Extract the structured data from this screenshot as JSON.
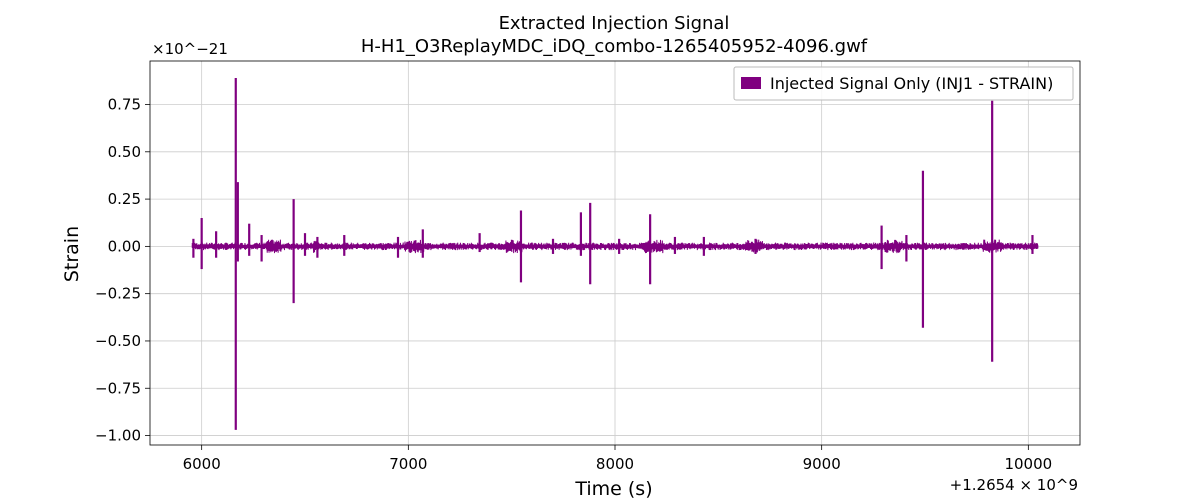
{
  "chart_data": {
    "type": "line",
    "title": "Extracted Injection Signal",
    "subtitle": "H-H1_O3ReplayMDC_iDQ_combo-1265405952-4096.gwf",
    "xlabel": "Time (s)",
    "ylabel": "Strain",
    "x_offset_label": "+1.2654 × 10^9",
    "y_exponent_label": "×10^−21",
    "xlim": [
      5750,
      10250
    ],
    "ylim": [
      -1.05,
      0.98
    ],
    "x_ticks": [
      6000,
      7000,
      8000,
      9000,
      10000
    ],
    "x_tick_labels": [
      "6000",
      "7000",
      "8000",
      "9000",
      "10000"
    ],
    "y_ticks": [
      0.75,
      0.5,
      0.25,
      0.0,
      -0.25,
      -0.5,
      -0.75,
      -1.0
    ],
    "y_tick_labels": [
      "0.75",
      "0.50",
      "0.25",
      "0.00",
      "−0.25",
      "−0.50",
      "−0.75",
      "−1.00"
    ],
    "grid": true,
    "legend_position": "top-right",
    "series": [
      {
        "name": "Injected Signal Only (INJ1 - STRAIN)",
        "color": "#800080",
        "x_range": [
          5952,
          10048
        ],
        "baseline_amplitude": 0.02,
        "spikes": [
          {
            "x": 5960,
            "top": 0.04,
            "bottom": -0.06
          },
          {
            "x": 6000,
            "top": 0.15,
            "bottom": -0.12
          },
          {
            "x": 6070,
            "top": 0.08,
            "bottom": -0.06
          },
          {
            "x": 6165,
            "top": 0.89,
            "bottom": -0.97
          },
          {
            "x": 6175,
            "top": 0.34,
            "bottom": -0.08
          },
          {
            "x": 6230,
            "top": 0.12,
            "bottom": -0.05
          },
          {
            "x": 6290,
            "top": 0.06,
            "bottom": -0.08
          },
          {
            "x": 6445,
            "top": 0.25,
            "bottom": -0.3
          },
          {
            "x": 6500,
            "top": 0.07,
            "bottom": -0.05
          },
          {
            "x": 6560,
            "top": 0.05,
            "bottom": -0.06
          },
          {
            "x": 6690,
            "top": 0.06,
            "bottom": -0.05
          },
          {
            "x": 6950,
            "top": 0.05,
            "bottom": -0.06
          },
          {
            "x": 7070,
            "top": 0.09,
            "bottom": -0.06
          },
          {
            "x": 7345,
            "top": 0.07,
            "bottom": -0.03
          },
          {
            "x": 7545,
            "top": 0.19,
            "bottom": -0.19
          },
          {
            "x": 7700,
            "top": 0.04,
            "bottom": -0.04
          },
          {
            "x": 7835,
            "top": 0.18,
            "bottom": -0.05
          },
          {
            "x": 7880,
            "top": 0.23,
            "bottom": -0.2
          },
          {
            "x": 8020,
            "top": 0.04,
            "bottom": -0.04
          },
          {
            "x": 8170,
            "top": 0.17,
            "bottom": -0.2
          },
          {
            "x": 8290,
            "top": 0.05,
            "bottom": -0.04
          },
          {
            "x": 8430,
            "top": 0.05,
            "bottom": -0.05
          },
          {
            "x": 8680,
            "top": 0.04,
            "bottom": -0.04
          },
          {
            "x": 9290,
            "top": 0.11,
            "bottom": -0.12
          },
          {
            "x": 9490,
            "top": 0.4,
            "bottom": -0.43
          },
          {
            "x": 9410,
            "top": 0.06,
            "bottom": -0.08
          },
          {
            "x": 9825,
            "top": 0.77,
            "bottom": -0.61
          },
          {
            "x": 10020,
            "top": 0.06,
            "bottom": -0.04
          }
        ]
      }
    ]
  }
}
